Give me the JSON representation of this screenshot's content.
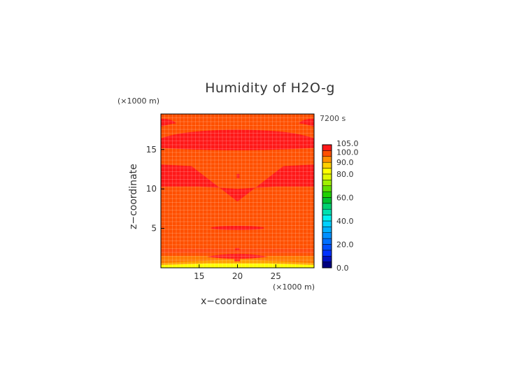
{
  "chart_data": {
    "type": "heatmap",
    "title": "Humidity of H2O-g",
    "time_label": "7200 s",
    "xlabel": "x−coordinate",
    "ylabel": "z−coordinate",
    "x_unit": "(×1000 m)",
    "z_unit": "(×1000 m)",
    "xlim": [
      10,
      30
    ],
    "zlim": [
      0,
      19.5
    ],
    "x_ticks": [
      15,
      20,
      25
    ],
    "z_ticks": [
      5,
      10,
      15
    ],
    "grid": true,
    "colorbar": {
      "levels": [
        0,
        5,
        10,
        15,
        20,
        25,
        30,
        35,
        40,
        45,
        50,
        55,
        60,
        65,
        70,
        75,
        80,
        85,
        90,
        95,
        100,
        105
      ],
      "tick_labels": [
        "0.0",
        "20.0",
        "40.0",
        "60.0",
        "80.0",
        "90.0",
        "100.0",
        "105.0"
      ],
      "tick_values": [
        0,
        20,
        40,
        60,
        80,
        90,
        100,
        105
      ],
      "colors": [
        "#00007f",
        "#0010c0",
        "#0030ff",
        "#0050ff",
        "#0070ff",
        "#0090ff",
        "#00b0ff",
        "#00d0ff",
        "#00f0f0",
        "#00e0b0",
        "#00d070",
        "#00c030",
        "#20d000",
        "#60e000",
        "#a0f000",
        "#e0f800",
        "#ffff00",
        "#ffd000",
        "#ff9000",
        "#ff5000",
        "#ff1818",
        "#ffb6b6"
      ]
    },
    "background_value": 97,
    "regions": [
      {
        "name": "upper-light-band",
        "value": 101,
        "z_range": [
          14.8,
          17.6
        ]
      },
      {
        "name": "middle-light-wedge",
        "value": 101,
        "z_range": [
          8.3,
          13.2
        ]
      },
      {
        "name": "top-left-cap",
        "value": 101,
        "z_range": [
          17.7,
          18.9
        ]
      },
      {
        "name": "top-right-cap",
        "value": 101,
        "z_range": [
          17.7,
          18.9
        ]
      },
      {
        "name": "lens-at-5km",
        "value": 101,
        "z_range": [
          4.8,
          5.3
        ]
      },
      {
        "name": "low-humidity-surface",
        "value": 80,
        "z_range": [
          0,
          1.5
        ]
      }
    ]
  }
}
